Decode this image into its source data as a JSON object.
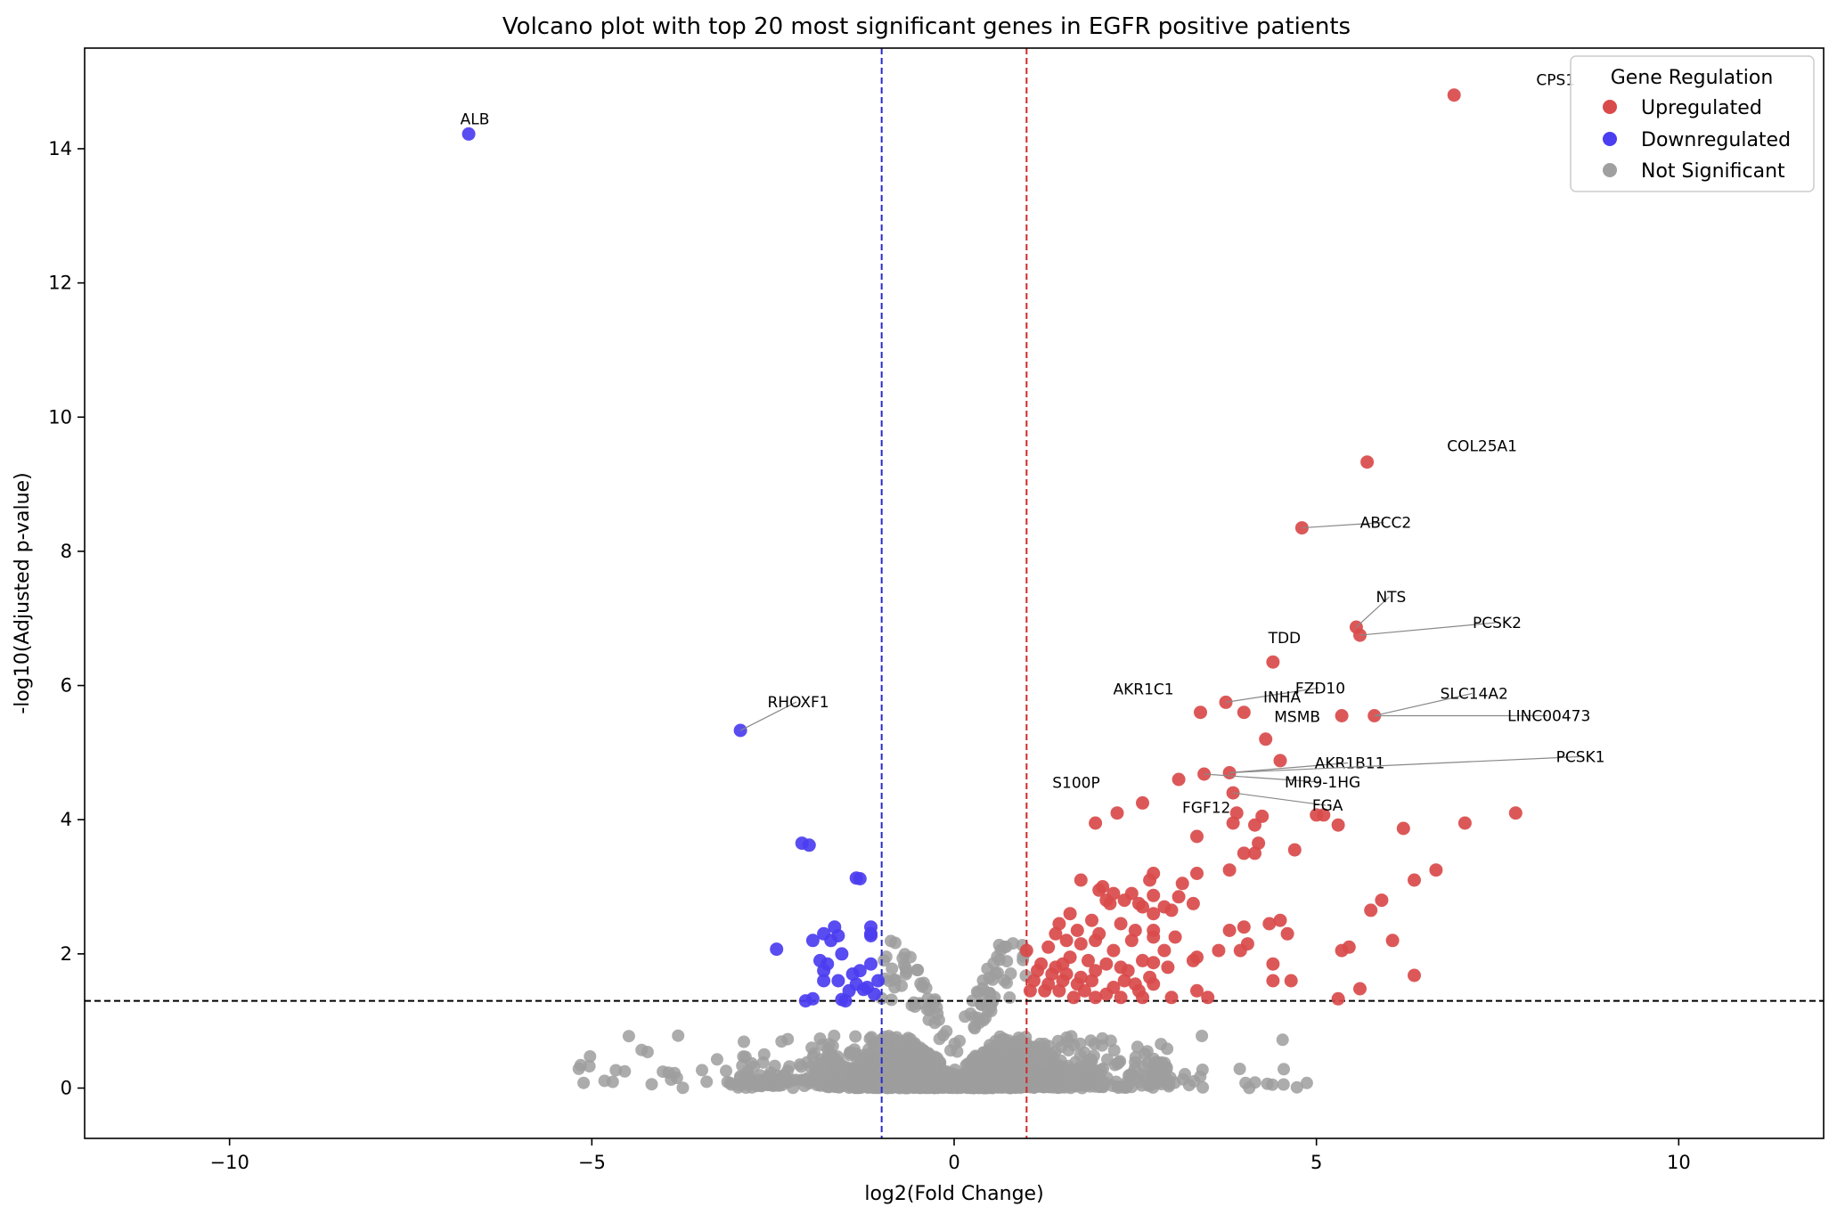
{
  "chart_data": {
    "type": "scatter",
    "title": "Volcano plot with top 20 most significant genes in EGFR positive patients",
    "xlabel": "log2(Fold Change)",
    "ylabel": "-log10(Adjusted p-value)",
    "xlim": [
      -12,
      12
    ],
    "ylim": [
      -0.75,
      15.5
    ],
    "xticks": [
      -10,
      -5,
      0,
      5,
      10
    ],
    "xtick_labels": [
      "−10",
      "−5",
      "0",
      "5",
      "10"
    ],
    "yticks": [
      0,
      2,
      4,
      6,
      8,
      10,
      12,
      14
    ],
    "ytick_labels": [
      "0",
      "2",
      "4",
      "6",
      "8",
      "10",
      "12",
      "14"
    ],
    "grid": false,
    "thresholds": {
      "fold_change_down": -1,
      "fold_change_up": 1,
      "neg_log10_p": 1.3
    },
    "legend": {
      "title": "Gene Regulation",
      "placement": "top-right",
      "entries": [
        {
          "label": "Upregulated",
          "color": "#d94a4a"
        },
        {
          "label": "Downregulated",
          "color": "#4b3df0"
        },
        {
          "label": "Not Significant",
          "color": "#a0a0a0"
        }
      ]
    },
    "colors": {
      "up": "#d94a4a",
      "down": "#4b3df0",
      "ns": "#9e9e9e",
      "line_down": "#2a2ad0",
      "line_up": "#d02a2a",
      "line_p": "#000000"
    },
    "series": [
      {
        "name": "Upregulated",
        "points": [
          [
            6.9,
            14.8
          ],
          [
            5.7,
            9.33
          ],
          [
            4.8,
            8.35
          ],
          [
            5.55,
            6.87
          ],
          [
            5.6,
            6.75
          ],
          [
            4.4,
            6.35
          ],
          [
            3.75,
            5.75
          ],
          [
            3.4,
            5.6
          ],
          [
            4.0,
            5.6
          ],
          [
            5.35,
            5.55
          ],
          [
            5.8,
            5.55
          ],
          [
            4.3,
            5.2
          ],
          [
            4.5,
            4.88
          ],
          [
            3.45,
            4.68
          ],
          [
            3.8,
            4.7
          ],
          [
            3.1,
            4.6
          ],
          [
            3.85,
            4.4
          ],
          [
            2.6,
            4.25
          ],
          [
            2.25,
            4.1
          ],
          [
            3.9,
            4.1
          ],
          [
            4.25,
            4.05
          ],
          [
            5.0,
            4.07
          ],
          [
            5.1,
            4.07
          ],
          [
            7.75,
            4.1
          ],
          [
            1.95,
            3.95
          ],
          [
            4.15,
            3.92
          ],
          [
            3.85,
            3.95
          ],
          [
            5.3,
            3.92
          ],
          [
            7.05,
            3.95
          ],
          [
            6.2,
            3.87
          ],
          [
            3.35,
            3.75
          ],
          [
            4.2,
            3.65
          ],
          [
            4.7,
            3.55
          ],
          [
            4.0,
            3.5
          ],
          [
            4.15,
            3.5
          ],
          [
            3.8,
            3.25
          ],
          [
            2.75,
            3.2
          ],
          [
            3.35,
            3.2
          ],
          [
            1.75,
            3.1
          ],
          [
            2.7,
            3.1
          ],
          [
            6.35,
            3.1
          ],
          [
            6.65,
            3.25
          ],
          [
            3.15,
            3.05
          ],
          [
            2.0,
            2.95
          ],
          [
            2.2,
            2.9
          ],
          [
            2.05,
            3.0
          ],
          [
            2.45,
            2.9
          ],
          [
            2.75,
            2.87
          ],
          [
            3.3,
            2.75
          ],
          [
            3.1,
            2.85
          ],
          [
            2.1,
            2.8
          ],
          [
            2.35,
            2.8
          ],
          [
            2.15,
            2.75
          ],
          [
            2.6,
            2.7
          ],
          [
            3.0,
            2.65
          ],
          [
            2.55,
            2.75
          ],
          [
            2.9,
            2.7
          ],
          [
            5.9,
            2.8
          ],
          [
            5.75,
            2.65
          ],
          [
            2.75,
            2.6
          ],
          [
            1.6,
            2.6
          ],
          [
            1.45,
            2.45
          ],
          [
            1.9,
            2.5
          ],
          [
            2.3,
            2.45
          ],
          [
            3.8,
            2.35
          ],
          [
            4.5,
            2.5
          ],
          [
            4.6,
            2.3
          ],
          [
            4.0,
            2.4
          ],
          [
            4.35,
            2.45
          ],
          [
            1.4,
            2.3
          ],
          [
            1.7,
            2.35
          ],
          [
            2.0,
            2.3
          ],
          [
            2.5,
            2.35
          ],
          [
            2.75,
            2.35
          ],
          [
            3.05,
            2.25
          ],
          [
            2.75,
            2.25
          ],
          [
            1.55,
            2.2
          ],
          [
            4.05,
            2.15
          ],
          [
            3.65,
            2.05
          ],
          [
            3.95,
            2.05
          ],
          [
            5.45,
            2.1
          ],
          [
            5.35,
            2.05
          ],
          [
            6.05,
            2.2
          ],
          [
            1.0,
            2.05
          ],
          [
            1.3,
            2.1
          ],
          [
            1.75,
            2.15
          ],
          [
            1.95,
            2.2
          ],
          [
            2.45,
            2.2
          ],
          [
            2.2,
            2.05
          ],
          [
            2.9,
            2.05
          ],
          [
            1.6,
            1.95
          ],
          [
            1.4,
            1.8
          ],
          [
            1.2,
            1.85
          ],
          [
            1.5,
            1.85
          ],
          [
            1.85,
            1.9
          ],
          [
            2.1,
            1.85
          ],
          [
            2.3,
            1.8
          ],
          [
            2.6,
            1.9
          ],
          [
            2.75,
            1.87
          ],
          [
            3.3,
            1.9
          ],
          [
            3.35,
            1.95
          ],
          [
            4.4,
            1.85
          ],
          [
            1.15,
            1.75
          ],
          [
            1.35,
            1.7
          ],
          [
            1.55,
            1.7
          ],
          [
            1.75,
            1.65
          ],
          [
            1.95,
            1.75
          ],
          [
            2.4,
            1.75
          ],
          [
            2.7,
            1.65
          ],
          [
            2.95,
            1.8
          ],
          [
            4.4,
            1.6
          ],
          [
            4.65,
            1.6
          ],
          [
            6.35,
            1.68
          ],
          [
            1.1,
            1.6
          ],
          [
            1.3,
            1.55
          ],
          [
            1.5,
            1.6
          ],
          [
            1.7,
            1.55
          ],
          [
            1.9,
            1.6
          ],
          [
            2.2,
            1.5
          ],
          [
            2.35,
            1.6
          ],
          [
            2.5,
            1.55
          ],
          [
            2.75,
            1.55
          ],
          [
            1.05,
            1.45
          ],
          [
            1.25,
            1.45
          ],
          [
            1.45,
            1.45
          ],
          [
            1.8,
            1.45
          ],
          [
            2.1,
            1.4
          ],
          [
            2.55,
            1.45
          ],
          [
            3.35,
            1.45
          ],
          [
            5.6,
            1.48
          ],
          [
            1.65,
            1.35
          ],
          [
            1.95,
            1.35
          ],
          [
            2.3,
            1.35
          ],
          [
            2.6,
            1.35
          ],
          [
            3.0,
            1.35
          ],
          [
            3.5,
            1.35
          ],
          [
            5.3,
            1.33
          ]
        ]
      },
      {
        "name": "Downregulated",
        "points": [
          [
            -6.7,
            14.22
          ],
          [
            -2.95,
            5.33
          ],
          [
            -2.1,
            3.65
          ],
          [
            -2.0,
            3.62
          ],
          [
            -1.35,
            3.13
          ],
          [
            -1.3,
            3.12
          ],
          [
            -1.15,
            2.4
          ],
          [
            -1.15,
            2.3
          ],
          [
            -1.65,
            2.4
          ],
          [
            -1.8,
            2.3
          ],
          [
            -1.7,
            2.2
          ],
          [
            -1.95,
            2.2
          ],
          [
            -1.15,
            2.27
          ],
          [
            -1.6,
            2.27
          ],
          [
            -2.45,
            2.07
          ],
          [
            -1.85,
            1.9
          ],
          [
            -1.55,
            2.0
          ],
          [
            -1.75,
            1.85
          ],
          [
            -1.3,
            1.75
          ],
          [
            -1.4,
            1.7
          ],
          [
            -1.8,
            1.75
          ],
          [
            -1.15,
            1.85
          ],
          [
            -1.6,
            1.6
          ],
          [
            -1.8,
            1.6
          ],
          [
            -1.35,
            1.55
          ],
          [
            -1.45,
            1.45
          ],
          [
            -1.25,
            1.47
          ],
          [
            -1.5,
            1.3
          ],
          [
            -1.55,
            1.32
          ],
          [
            -1.95,
            1.33
          ],
          [
            -2.05,
            1.3
          ],
          [
            -1.1,
            1.4
          ],
          [
            -1.2,
            1.5
          ],
          [
            -1.05,
            1.6
          ]
        ]
      }
    ],
    "annotations": [
      {
        "gene": "CPS1",
        "x": 6.9,
        "y": 14.8
      },
      {
        "gene": "ALB",
        "x": -6.7,
        "y": 14.22
      },
      {
        "gene": "COL25A1",
        "x": 5.7,
        "y": 9.33
      },
      {
        "gene": "ABCC2",
        "x": 4.8,
        "y": 8.35
      },
      {
        "gene": "NTS",
        "x": 5.55,
        "y": 6.87
      },
      {
        "gene": "PCSK2",
        "x": 5.6,
        "y": 6.75
      },
      {
        "gene": "TDD",
        "x": 4.4,
        "y": 6.35
      },
      {
        "gene": "FZD10",
        "x": 3.75,
        "y": 5.75
      },
      {
        "gene": "AKR1C1",
        "x": 3.4,
        "y": 5.6
      },
      {
        "gene": "SLC14A2",
        "x": 5.8,
        "y": 5.55
      },
      {
        "gene": "INHA",
        "x": 5.35,
        "y": 5.55
      },
      {
        "gene": "MSMB",
        "x": 5.35,
        "y": 5.55
      },
      {
        "gene": "LINC00473",
        "x": 5.8,
        "y": 5.55
      },
      {
        "gene": "RHOXF1",
        "x": -2.95,
        "y": 5.33
      },
      {
        "gene": "AKR1B11",
        "x": 3.8,
        "y": 4.7
      },
      {
        "gene": "PCSK1",
        "x": 3.8,
        "y": 4.7
      },
      {
        "gene": "MIR9-1HG",
        "x": 3.45,
        "y": 4.68
      },
      {
        "gene": "FGA",
        "x": 3.85,
        "y": 4.4
      },
      {
        "gene": "S100P",
        "x": 2.25,
        "y": 4.1
      },
      {
        "gene": "FGF12",
        "x": 3.9,
        "y": 4.1
      }
    ]
  }
}
